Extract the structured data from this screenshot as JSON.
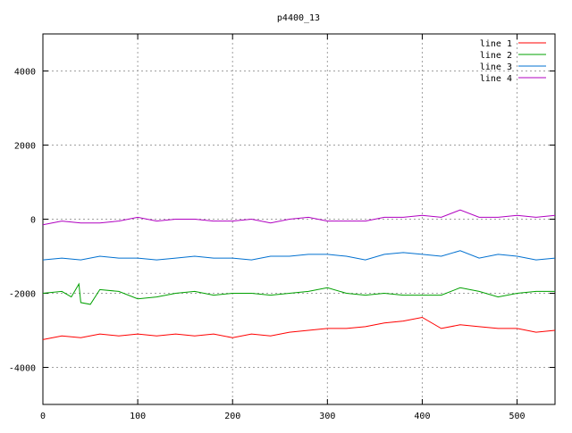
{
  "chart_data": {
    "type": "line",
    "title": "p4400_13",
    "xlabel": "",
    "ylabel": "",
    "xlim": [
      0,
      540
    ],
    "ylim": [
      -5000,
      5000
    ],
    "x_ticks": [
      0,
      100,
      200,
      300,
      400,
      500
    ],
    "y_ticks": [
      -4000,
      -2000,
      0,
      2000,
      4000
    ],
    "grid": true,
    "legend_position": "top-right",
    "series": [
      {
        "name": "line 1",
        "color": "#ff0000",
        "x": [
          0,
          20,
          40,
          60,
          80,
          100,
          120,
          140,
          160,
          180,
          200,
          220,
          240,
          260,
          280,
          300,
          320,
          340,
          360,
          380,
          400,
          420,
          440,
          460,
          480,
          500,
          520,
          540
        ],
        "y": [
          -3250,
          -3150,
          -3200,
          -3100,
          -3150,
          -3100,
          -3150,
          -3100,
          -3150,
          -3100,
          -3200,
          -3100,
          -3150,
          -3050,
          -3000,
          -2950,
          -2950,
          -2900,
          -2800,
          -2750,
          -2650,
          -2950,
          -2850,
          -2900,
          -2950,
          -2950,
          -3050,
          -3000
        ]
      },
      {
        "name": "line 2",
        "color": "#00a000",
        "x": [
          0,
          20,
          30,
          38,
          40,
          50,
          60,
          80,
          100,
          120,
          140,
          160,
          180,
          200,
          220,
          240,
          260,
          280,
          300,
          320,
          340,
          360,
          380,
          400,
          420,
          440,
          460,
          480,
          500,
          520,
          540
        ],
        "y": [
          -2000,
          -1950,
          -2100,
          -1750,
          -2250,
          -2300,
          -1900,
          -1950,
          -2150,
          -2100,
          -2000,
          -1950,
          -2050,
          -2000,
          -2000,
          -2050,
          -2000,
          -1950,
          -1850,
          -2000,
          -2050,
          -2000,
          -2050,
          -2050,
          -2050,
          -1850,
          -1950,
          -2100,
          -2000,
          -1950,
          -1950
        ]
      },
      {
        "name": "line 3",
        "color": "#0070d0",
        "x": [
          0,
          20,
          40,
          60,
          80,
          100,
          120,
          140,
          160,
          180,
          200,
          220,
          240,
          260,
          280,
          300,
          320,
          340,
          360,
          380,
          400,
          420,
          440,
          460,
          480,
          500,
          520,
          540
        ],
        "y": [
          -1100,
          -1050,
          -1100,
          -1000,
          -1050,
          -1050,
          -1100,
          -1050,
          -1000,
          -1050,
          -1050,
          -1100,
          -1000,
          -1000,
          -950,
          -950,
          -1000,
          -1100,
          -950,
          -900,
          -950,
          -1000,
          -850,
          -1050,
          -950,
          -1000,
          -1100,
          -1050
        ]
      },
      {
        "name": "line 4",
        "color": "#b000c0",
        "x": [
          0,
          20,
          40,
          60,
          80,
          100,
          120,
          140,
          160,
          180,
          200,
          220,
          240,
          260,
          280,
          300,
          320,
          340,
          360,
          380,
          400,
          420,
          440,
          460,
          480,
          500,
          520,
          540
        ],
        "y": [
          -150,
          -50,
          -100,
          -100,
          -50,
          50,
          -50,
          0,
          0,
          -50,
          -50,
          0,
          -100,
          0,
          50,
          -50,
          -50,
          -50,
          50,
          50,
          100,
          50,
          250,
          50,
          50,
          100,
          50,
          100
        ]
      }
    ]
  }
}
